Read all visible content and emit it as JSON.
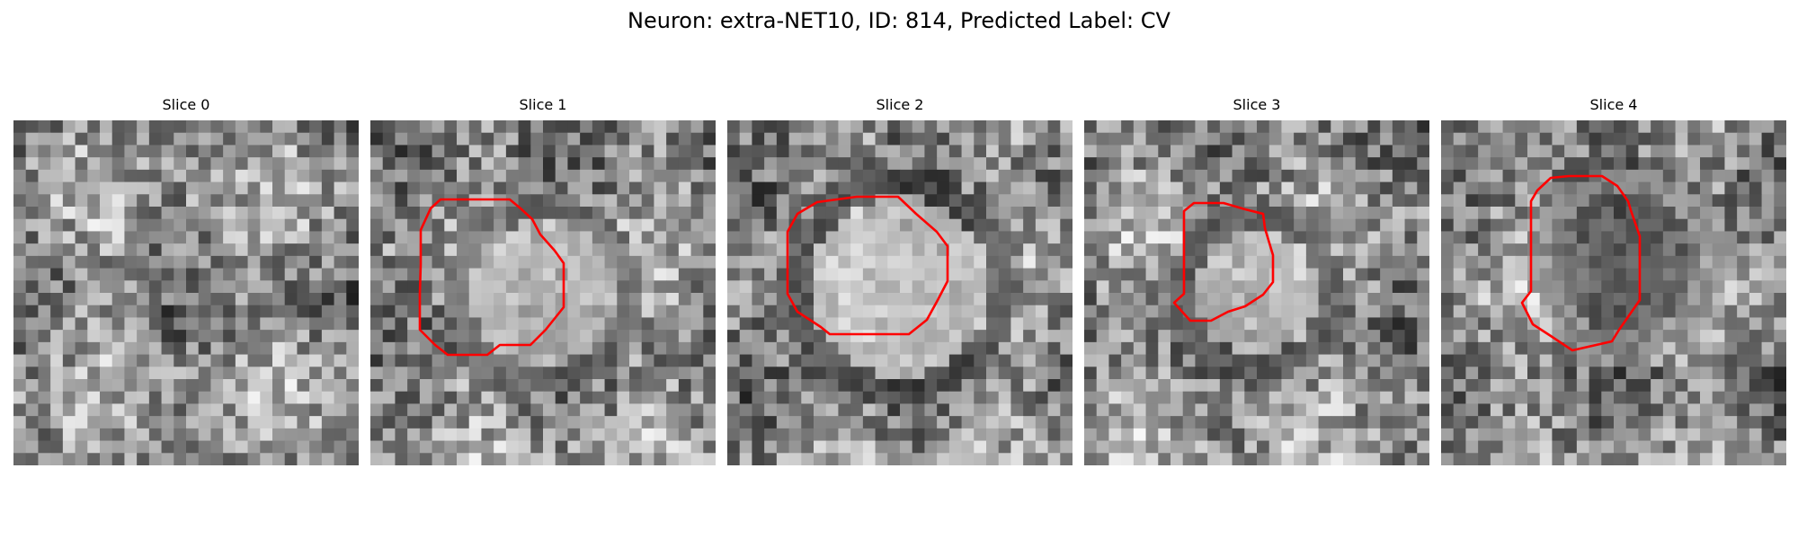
{
  "figure": {
    "title": "Neuron: extra-NET10, ID: 814, Predicted Label: CV",
    "outline_color": "#ff0000",
    "colormap": "gray",
    "panels": [
      {
        "title": "Slice 0",
        "has_outline": false
      },
      {
        "title": "Slice 1",
        "has_outline": true
      },
      {
        "title": "Slice 2",
        "has_outline": true
      },
      {
        "title": "Slice 3",
        "has_outline": true
      },
      {
        "title": "Slice 4",
        "has_outline": true
      }
    ]
  }
}
